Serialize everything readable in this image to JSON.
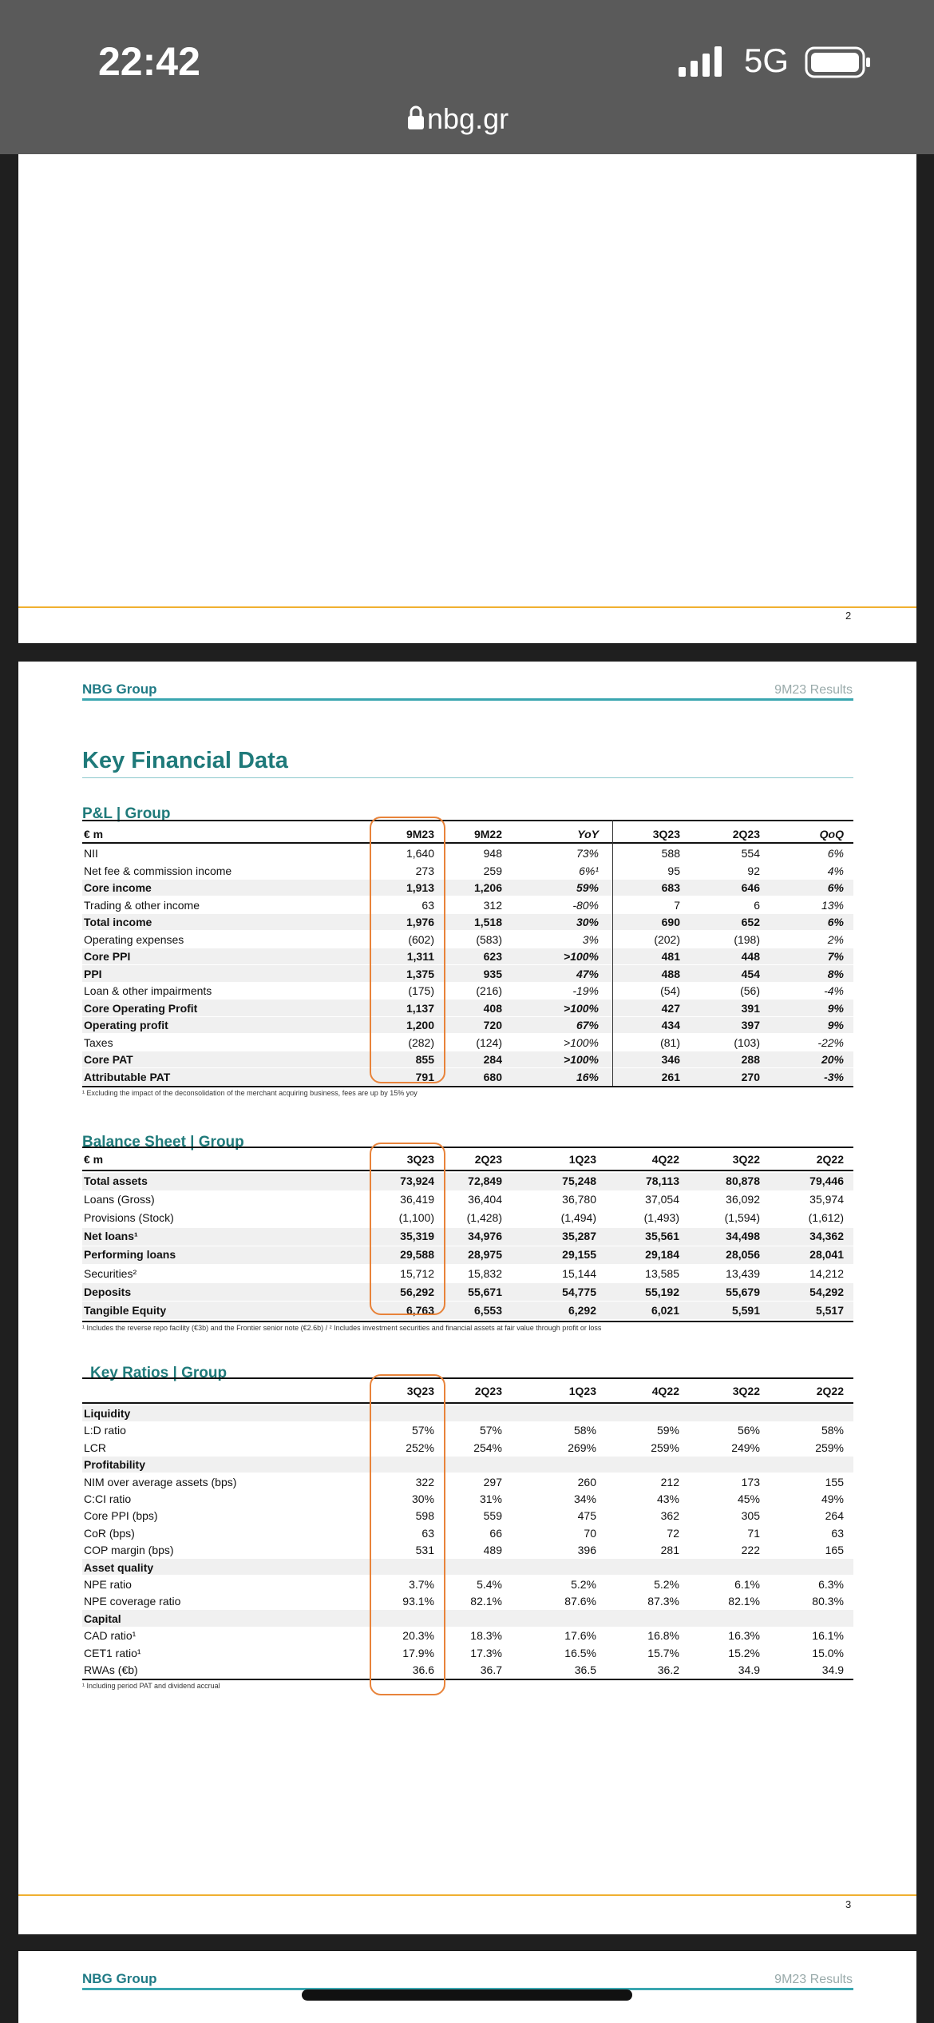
{
  "status": {
    "time": "22:42",
    "network": "5G",
    "url": "nbg.gr"
  },
  "previous_page": {
    "number": "2"
  },
  "page": {
    "brand": "NBG Group",
    "report": "9M23 Results",
    "title": "Key Financial Data",
    "number": "3"
  },
  "next_page": {
    "brand": "NBG Group",
    "report": "9M23 Results"
  },
  "tables": {
    "pl": {
      "title": "P&L | Group",
      "columns": [
        "€ m",
        "9M23",
        "9M22",
        "YoY",
        "3Q23",
        "2Q23",
        "QoQ"
      ],
      "italic_columns": [
        3,
        6
      ],
      "rows": [
        {
          "label": "NII",
          "values": [
            "1,640",
            "948",
            "73%",
            "588",
            "554",
            "6%"
          ]
        },
        {
          "label": "Net fee & commission income",
          "values": [
            "273",
            "259",
            "6%¹",
            "95",
            "92",
            "4%"
          ]
        },
        {
          "label": "Core income",
          "bold": true,
          "values": [
            "1,913",
            "1,206",
            "59%",
            "683",
            "646",
            "6%"
          ]
        },
        {
          "label": "Trading & other income",
          "values": [
            "63",
            "312",
            "-80%",
            "7",
            "6",
            "13%"
          ]
        },
        {
          "label": "Total income",
          "bold": true,
          "values": [
            "1,976",
            "1,518",
            "30%",
            "690",
            "652",
            "6%"
          ]
        },
        {
          "label": "Operating expenses",
          "values": [
            "(602)",
            "(583)",
            "3%",
            "(202)",
            "(198)",
            "2%"
          ]
        },
        {
          "label": "Core PPI",
          "bold": true,
          "values": [
            "1,311",
            "623",
            ">100%",
            "481",
            "448",
            "7%"
          ]
        },
        {
          "label": "PPI",
          "bold": true,
          "values": [
            "1,375",
            "935",
            "47%",
            "488",
            "454",
            "8%"
          ]
        },
        {
          "label": "Loan & other impairments",
          "values": [
            "(175)",
            "(216)",
            "-19%",
            "(54)",
            "(56)",
            "-4%"
          ]
        },
        {
          "label": "Core Operating Profit",
          "bold": true,
          "values": [
            "1,137",
            "408",
            ">100%",
            "427",
            "391",
            "9%"
          ]
        },
        {
          "label": "Operating profit",
          "bold": true,
          "values": [
            "1,200",
            "720",
            "67%",
            "434",
            "397",
            "9%"
          ]
        },
        {
          "label": "Taxes",
          "values": [
            "(282)",
            "(124)",
            ">100%",
            "(81)",
            "(103)",
            "-22%"
          ]
        },
        {
          "label": "Core PAT",
          "bold": true,
          "values": [
            "855",
            "284",
            ">100%",
            "346",
            "288",
            "20%"
          ]
        },
        {
          "label": "Attributable PAT",
          "bold": true,
          "values": [
            "791",
            "680",
            "16%",
            "261",
            "270",
            "-3%"
          ]
        }
      ],
      "footnote": "¹ Excluding the impact of the deconsolidation of the merchant acquiring business, fees are up by 15% yoy"
    },
    "bs": {
      "title": "Balance Sheet | Group",
      "columns": [
        "€ m",
        "3Q23",
        "2Q23",
        "1Q23",
        "4Q22",
        "3Q22",
        "2Q22"
      ],
      "rows": [
        {
          "label": "Total assets",
          "bold": true,
          "values": [
            "73,924",
            "72,849",
            "75,248",
            "78,113",
            "80,878",
            "79,446"
          ]
        },
        {
          "label": "Loans (Gross)",
          "values": [
            "36,419",
            "36,404",
            "36,780",
            "37,054",
            "36,092",
            "35,974"
          ]
        },
        {
          "label": "Provisions (Stock)",
          "values": [
            "(1,100)",
            "(1,428)",
            "(1,494)",
            "(1,493)",
            "(1,594)",
            "(1,612)"
          ]
        },
        {
          "label": "Net loans¹",
          "bold": true,
          "values": [
            "35,319",
            "34,976",
            "35,287",
            "35,561",
            "34,498",
            "34,362"
          ]
        },
        {
          "label": "Performing loans",
          "bold": true,
          "values": [
            "29,588",
            "28,975",
            "29,155",
            "29,184",
            "28,056",
            "28,041"
          ]
        },
        {
          "label": "Securities²",
          "values": [
            "15,712",
            "15,832",
            "15,144",
            "13,585",
            "13,439",
            "14,212"
          ]
        },
        {
          "label": "Deposits",
          "bold": true,
          "values": [
            "56,292",
            "55,671",
            "54,775",
            "55,192",
            "55,679",
            "54,292"
          ]
        },
        {
          "label": "Tangible Equity",
          "bold": true,
          "values": [
            "6,763",
            "6,553",
            "6,292",
            "6,021",
            "5,591",
            "5,517"
          ]
        }
      ],
      "footnote": "¹ Includes the reverse repo facility (€3b) and the Frontier senior note (€2.6b) / ² Includes investment securities and financial assets at fair value through profit or loss"
    },
    "kr": {
      "title": "Key Ratios | Group",
      "columns": [
        "3Q23",
        "2Q23",
        "1Q23",
        "4Q22",
        "3Q22",
        "2Q22"
      ],
      "rows": [
        {
          "label": "Liquidity",
          "section": true
        },
        {
          "label": "L:D ratio",
          "values": [
            "57%",
            "57%",
            "58%",
            "59%",
            "56%",
            "58%"
          ]
        },
        {
          "label": "LCR",
          "values": [
            "252%",
            "254%",
            "269%",
            "259%",
            "249%",
            "259%"
          ]
        },
        {
          "label": "Profitability",
          "section": true
        },
        {
          "label": "NIM over average assets (bps)",
          "values": [
            "322",
            "297",
            "260",
            "212",
            "173",
            "155"
          ]
        },
        {
          "label": "C:CI ratio",
          "values": [
            "30%",
            "31%",
            "34%",
            "43%",
            "45%",
            "49%"
          ]
        },
        {
          "label": "Core PPI (bps)",
          "values": [
            "598",
            "559",
            "475",
            "362",
            "305",
            "264"
          ]
        },
        {
          "label": "CoR (bps)",
          "values": [
            "63",
            "66",
            "70",
            "72",
            "71",
            "63"
          ]
        },
        {
          "label": "COP margin (bps)",
          "values": [
            "531",
            "489",
            "396",
            "281",
            "222",
            "165"
          ]
        },
        {
          "label": "Asset quality",
          "section": true
        },
        {
          "label": "NPE ratio",
          "values": [
            "3.7%",
            "5.4%",
            "5.2%",
            "5.2%",
            "6.1%",
            "6.3%"
          ]
        },
        {
          "label": "NPE coverage ratio",
          "values": [
            "93.1%",
            "82.1%",
            "87.6%",
            "87.3%",
            "82.1%",
            "80.3%"
          ]
        },
        {
          "label": "Capital",
          "section": true
        },
        {
          "label": "CAD ratio¹",
          "values": [
            "20.3%",
            "18.3%",
            "17.6%",
            "16.8%",
            "16.3%",
            "16.1%"
          ]
        },
        {
          "label": "CET1 ratio¹",
          "values": [
            "17.9%",
            "17.3%",
            "16.5%",
            "15.7%",
            "15.2%",
            "15.0%"
          ]
        },
        {
          "label": "RWAs (€b)",
          "values": [
            "36.6",
            "36.7",
            "36.5",
            "36.2",
            "34.9",
            "34.9"
          ]
        }
      ],
      "footnote": "¹ Including period PAT and dividend accrual"
    }
  }
}
